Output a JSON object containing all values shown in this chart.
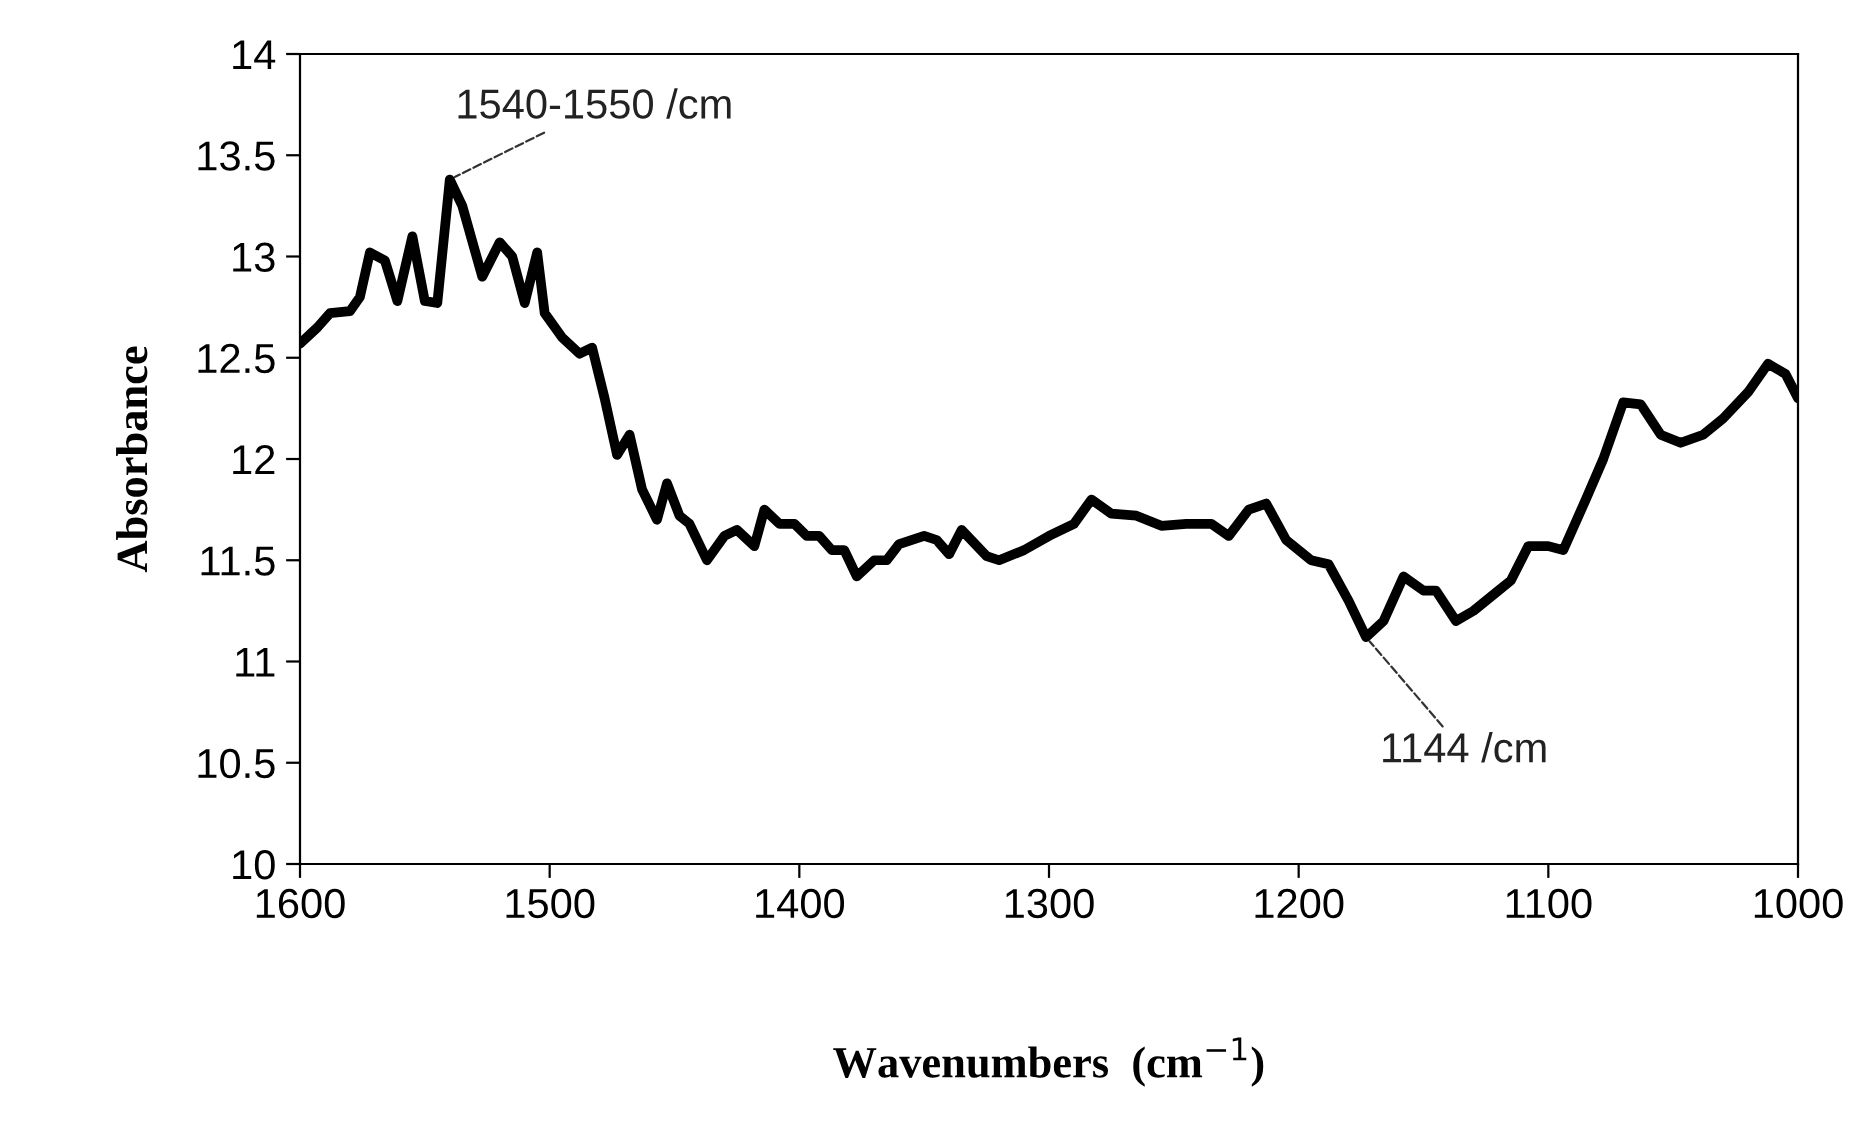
{
  "chart_data": {
    "type": "line",
    "xlabel": "Wavenumbers  (cm$^{−1}$)",
    "ylabel": "Absorbance",
    "x": [
      1600,
      1593,
      1588,
      1580,
      1576,
      1572,
      1566,
      1561,
      1555,
      1550,
      1545,
      1540,
      1535,
      1527,
      1520,
      1515,
      1510,
      1505,
      1502,
      1495,
      1488,
      1483,
      1478,
      1473,
      1468,
      1463,
      1457,
      1453,
      1448,
      1444,
      1437,
      1430,
      1425,
      1418,
      1414,
      1408,
      1402,
      1397,
      1392,
      1387,
      1382,
      1377,
      1370,
      1365,
      1360,
      1350,
      1345,
      1340,
      1335,
      1325,
      1320,
      1310,
      1300,
      1290,
      1283,
      1275,
      1265,
      1255,
      1245,
      1235,
      1228,
      1220,
      1213,
      1205,
      1195,
      1188,
      1180,
      1173,
      1166,
      1158,
      1150,
      1145,
      1137,
      1130,
      1120,
      1115,
      1108,
      1100,
      1094,
      1085,
      1078,
      1070,
      1063,
      1055,
      1047,
      1038,
      1030,
      1020,
      1012,
      1005,
      1000
    ],
    "series": [
      {
        "color": "#000000",
        "values": [
          12.57,
          12.65,
          12.72,
          12.73,
          12.8,
          13.02,
          12.98,
          12.78,
          13.1,
          12.78,
          12.77,
          13.38,
          13.25,
          12.9,
          13.07,
          13.0,
          12.77,
          13.02,
          12.72,
          12.6,
          12.52,
          12.55,
          12.3,
          12.02,
          12.12,
          11.85,
          11.7,
          11.88,
          11.72,
          11.68,
          11.5,
          11.62,
          11.65,
          11.57,
          11.75,
          11.68,
          11.68,
          11.62,
          11.62,
          11.55,
          11.55,
          11.42,
          11.5,
          11.5,
          11.58,
          11.62,
          11.6,
          11.53,
          11.65,
          11.52,
          11.5,
          11.55,
          11.62,
          11.68,
          11.8,
          11.73,
          11.72,
          11.67,
          11.68,
          11.68,
          11.62,
          11.75,
          11.78,
          11.6,
          11.5,
          11.48,
          11.3,
          11.12,
          11.2,
          11.42,
          11.35,
          11.35,
          11.2,
          11.25,
          11.35,
          11.4,
          11.57,
          11.57,
          11.55,
          11.8,
          12.0,
          12.28,
          12.27,
          12.12,
          12.08,
          12.12,
          12.2,
          12.33,
          12.47,
          12.42,
          12.3
        ]
      }
    ],
    "xlim": [
      1600,
      1000
    ],
    "xticks": [
      1600,
      1500,
      1400,
      1300,
      1200,
      1100,
      1000
    ],
    "ylim": [
      10,
      14
    ],
    "yticks": [
      10,
      10.5,
      11,
      11.5,
      12,
      12.5,
      13,
      13.5,
      14
    ],
    "grid": false,
    "legend": false,
    "marker": "none",
    "line_style": "solid",
    "annotations": [
      {
        "text": "1540-1550 /cm",
        "x": 1540,
        "y": 13.38
      },
      {
        "text": "1144 /cm",
        "x": 1173,
        "y": 11.12
      }
    ]
  }
}
